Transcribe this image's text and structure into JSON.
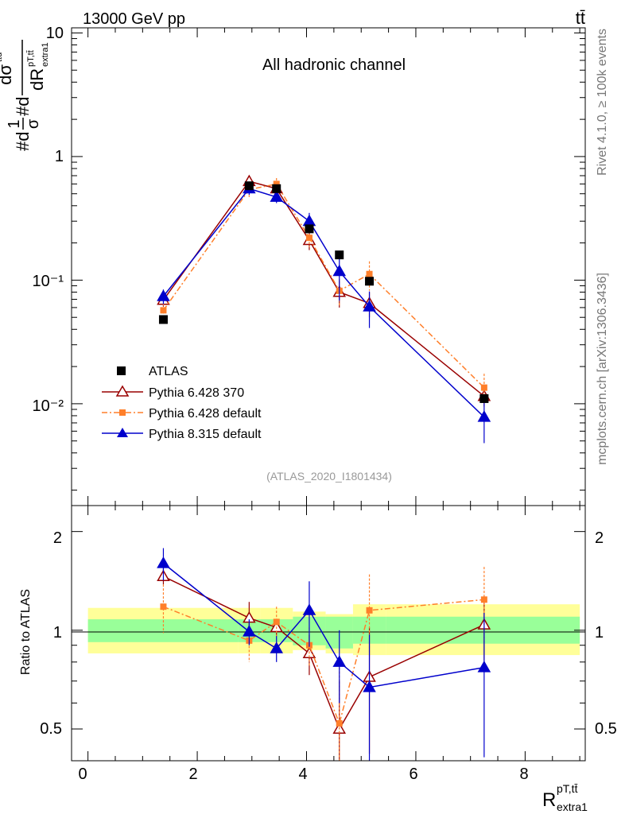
{
  "header": {
    "energy_label": "13000 GeV pp",
    "process_label": "tt̄"
  },
  "side_labels": {
    "rivet": "Rivet 4.1.0, ≥ 100k events",
    "mcplots": "mcplots.cern.ch [arXiv:1306.3436]"
  },
  "main_panel": {
    "channel_label": "All hadronic channel",
    "analysis_label": "(ATLAS_2020_I1801434)",
    "ylabel_parts": {
      "numerator_prefix": "#d",
      "frac_num": "1",
      "frac_den": "σ",
      "mid": "#d",
      "dsigma": "dσ",
      "dsigma_sup": "ttd",
      "dR": "dR",
      "dR_sup": "pT,tt̄",
      "dR_sub": "extra1",
      "side_sub": "extra1"
    },
    "yticks": [
      "10⁻²",
      "10⁻¹",
      "1",
      "10"
    ]
  },
  "ratio_panel": {
    "ylabel": "Ratio to ATLAS",
    "yticks": [
      "0.5",
      "1",
      "2"
    ]
  },
  "xaxis": {
    "ticks": [
      "0",
      "2",
      "4",
      "6",
      "8"
    ],
    "label_main": "R",
    "label_sup": "pT,tt̄",
    "label_sub": "extra1"
  },
  "legend": {
    "entries": [
      "ATLAS",
      "Pythia 6.428 370",
      "Pythia 6.428 default",
      "Pythia 8.315 default"
    ]
  },
  "colors": {
    "data": "#000000",
    "p6_370": "#990000",
    "p6_default": "#ff7f2a",
    "p8": "#0000cc",
    "band_inner": "#99ff99",
    "band_outer": "#ffff99"
  },
  "chart_data": {
    "type": "scatter",
    "title": "All hadronic channel",
    "xlabel": "R extra1 (pT,tt̄)",
    "ylabel": "1/σ dσ/dR",
    "xlim": [
      -0.3,
      9.1
    ],
    "ylim": [
      0.0015,
      11
    ],
    "yscale": "log",
    "ratio_ylim": [
      0.4,
      2.4
    ],
    "x_edges": [
      0,
      2.75,
      3.15,
      3.75,
      4.35,
      4.85,
      5.45,
      9.0
    ],
    "data": {
      "name": "ATLAS",
      "x": [
        1.38,
        2.95,
        3.45,
        4.05,
        4.6,
        5.15,
        7.25
      ],
      "y": [
        0.048,
        0.58,
        0.55,
        0.26,
        0.16,
        0.098,
        0.011
      ],
      "band_inner": [
        [
          0.92,
          1.08
        ],
        [
          0.92,
          1.08
        ],
        [
          0.92,
          1.08
        ],
        [
          0.9,
          1.1
        ],
        [
          0.88,
          1.1
        ],
        [
          0.91,
          1.1
        ],
        [
          0.91,
          1.1
        ]
      ],
      "band_outer": [
        [
          0.85,
          1.17
        ],
        [
          0.85,
          1.17
        ],
        [
          0.85,
          1.17
        ],
        [
          0.87,
          1.14
        ],
        [
          0.85,
          1.12
        ],
        [
          0.84,
          1.2
        ],
        [
          0.84,
          1.2
        ]
      ]
    },
    "series": [
      {
        "name": "Pythia 6.428 370",
        "y": [
          0.069,
          0.63,
          0.55,
          0.21,
          0.08,
          0.065,
          0.0115
        ],
        "yerr": [
          0.008,
          0.07,
          0.06,
          0.035,
          0.02,
          0.015,
          0.002
        ],
        "ratio": [
          1.46,
          1.09,
          1.02,
          0.85,
          0.5,
          0.72,
          1.04
        ],
        "ratio_err": [
          0.08,
          0.13,
          0.06,
          0.12,
          0.2,
          0.3,
          0.23
        ]
      },
      {
        "name": "Pythia 6.428 default",
        "y": [
          0.057,
          0.54,
          0.6,
          0.22,
          0.082,
          0.112,
          0.0135
        ],
        "yerr": [
          0.008,
          0.07,
          0.07,
          0.035,
          0.02,
          0.03,
          0.004
        ],
        "ratio": [
          1.18,
          0.93,
          1.06,
          0.9,
          0.52,
          1.15,
          1.24
        ],
        "ratio_err": [
          0.2,
          0.13,
          0.12,
          0.12,
          0.25,
          0.33,
          0.32
        ]
      },
      {
        "name": "Pythia 8.315 default",
        "y": [
          0.074,
          0.55,
          0.47,
          0.3,
          0.118,
          0.061,
          0.0078
        ],
        "yerr": [
          0.01,
          0.06,
          0.05,
          0.05,
          0.05,
          0.02,
          0.003
        ],
        "ratio": [
          1.6,
          0.99,
          0.88,
          1.15,
          0.8,
          0.67,
          0.77
        ],
        "ratio_err": [
          0.18,
          0.09,
          0.08,
          0.26,
          0.2,
          0.3,
          0.36
        ]
      }
    ]
  }
}
